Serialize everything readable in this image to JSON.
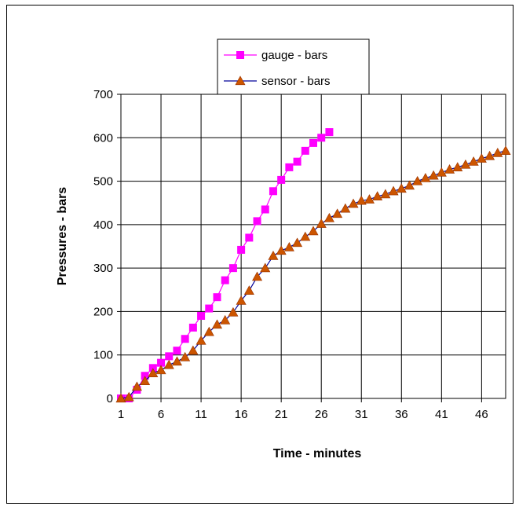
{
  "chart_data": {
    "type": "line",
    "xlabel": "Time - minutes",
    "ylabel": "Pressures - bars",
    "xlim": [
      1,
      49
    ],
    "ylim": [
      0,
      700
    ],
    "x_ticks": [
      1,
      6,
      11,
      16,
      21,
      26,
      31,
      36,
      41,
      46
    ],
    "y_ticks": [
      0,
      100,
      200,
      300,
      400,
      500,
      600,
      700
    ],
    "grid": true,
    "legend_position": "top-center",
    "series": [
      {
        "name": "gauge - bars",
        "color": "#ff00ff",
        "marker": "square",
        "x": [
          1,
          2,
          3,
          4,
          5,
          6,
          7,
          8,
          9,
          10,
          11,
          12,
          13,
          14,
          15,
          16,
          17,
          18,
          19,
          20,
          21,
          22,
          23,
          24,
          25,
          26,
          27
        ],
        "values": [
          0,
          0,
          20,
          52,
          70,
          82,
          97,
          110,
          137,
          163,
          190,
          207,
          233,
          272,
          300,
          342,
          370,
          408,
          435,
          477,
          503,
          532,
          545,
          570,
          588,
          600,
          613
        ]
      },
      {
        "name": "sensor - bars",
        "color": "#cc5500",
        "line_color": "#000099",
        "marker": "triangle",
        "x": [
          1,
          2,
          3,
          4,
          5,
          6,
          7,
          8,
          9,
          10,
          11,
          12,
          13,
          14,
          15,
          16,
          17,
          18,
          19,
          20,
          21,
          22,
          23,
          24,
          25,
          26,
          27,
          28,
          29,
          30,
          31,
          32,
          33,
          34,
          35,
          36,
          37,
          38,
          39,
          40,
          41,
          42,
          43,
          44,
          45,
          46,
          47,
          48,
          49
        ],
        "values": [
          0,
          3,
          27,
          40,
          58,
          65,
          77,
          85,
          95,
          110,
          133,
          153,
          170,
          180,
          198,
          225,
          248,
          280,
          300,
          328,
          340,
          348,
          358,
          372,
          385,
          402,
          415,
          425,
          437,
          448,
          455,
          458,
          465,
          470,
          477,
          483,
          490,
          500,
          507,
          513,
          520,
          527,
          532,
          538,
          545,
          552,
          558,
          565,
          570
        ]
      }
    ]
  }
}
